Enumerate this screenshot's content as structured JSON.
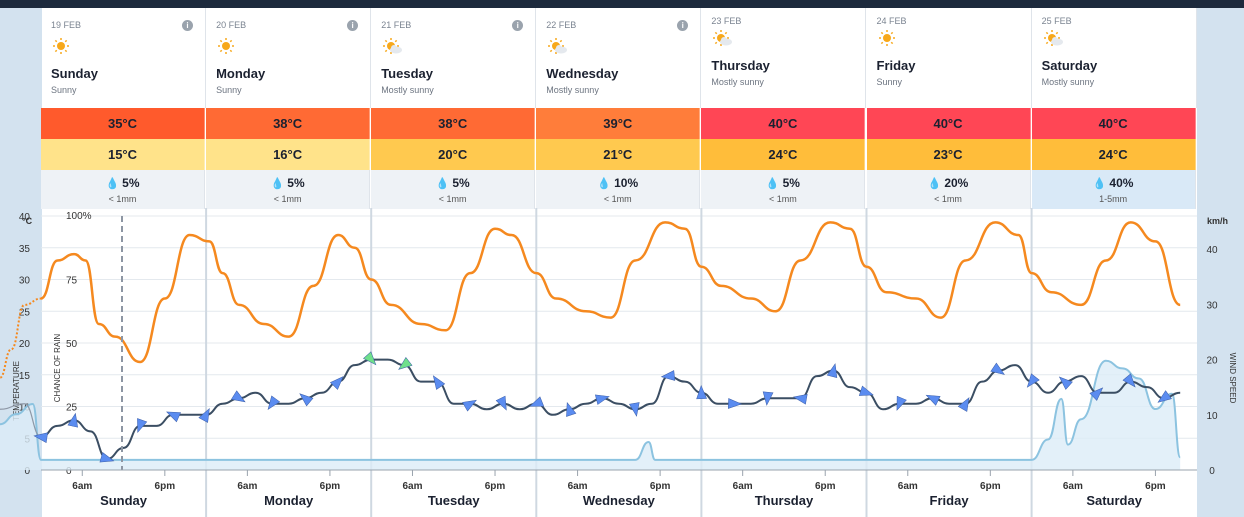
{
  "days": [
    {
      "date": "19 FEB",
      "name": "Sunday",
      "condition": "Sunny",
      "icon": "sun-icon",
      "high": "35°C",
      "low": "15°C",
      "rain_chance": "5%",
      "rain_amount": "< 1mm"
    },
    {
      "date": "20 FEB",
      "name": "Monday",
      "condition": "Sunny",
      "icon": "sun-icon",
      "high": "38°C",
      "low": "16°C",
      "rain_chance": "5%",
      "rain_amount": "< 1mm"
    },
    {
      "date": "21 FEB",
      "name": "Tuesday",
      "condition": "Mostly sunny",
      "icon": "sun-cloud-icon",
      "high": "38°C",
      "low": "20°C",
      "rain_chance": "5%",
      "rain_amount": "< 1mm"
    },
    {
      "date": "22 FEB",
      "name": "Wednesday",
      "condition": "Mostly sunny",
      "icon": "sun-cloud-icon",
      "high": "39°C",
      "low": "21°C",
      "rain_chance": "10%",
      "rain_amount": "< 1mm"
    },
    {
      "date": "23 FEB",
      "name": "Thursday",
      "condition": "Mostly sunny",
      "icon": "sun-cloud-icon",
      "high": "40°C",
      "low": "24°C",
      "rain_chance": "5%",
      "rain_amount": "< 1mm"
    },
    {
      "date": "24 FEB",
      "name": "Friday",
      "condition": "Sunny",
      "icon": "sun-icon",
      "high": "40°C",
      "low": "23°C",
      "rain_chance": "20%",
      "rain_amount": "< 1mm"
    },
    {
      "date": "25 FEB",
      "name": "Saturday",
      "condition": "Mostly sunny",
      "icon": "sun-cloud-icon",
      "high": "40°C",
      "low": "24°C",
      "rain_chance": "40%",
      "rain_amount": "1-5mm"
    }
  ],
  "colors": {
    "high_35": "#ff5a2c",
    "high_38": "#ff6a34",
    "high_39": "#ff7d3a",
    "high_40": "#ff4655",
    "low_15": "#ffe38a",
    "low_16": "#ffe38a",
    "low_20": "#ffc94f",
    "low_21": "#ffc94f",
    "low_24": "#ffbd3a",
    "low_23": "#ffbd3a",
    "temperature": "#f5891f",
    "wind": "#3b4e63",
    "wind_arrow": "#5b8cf0",
    "wind_arrow_strong": "#6fe08b",
    "rain": "#8cc3e0"
  },
  "chart_data": {
    "type": "line",
    "temp_axis": {
      "label": "TEMPERATURE",
      "unit": "°C",
      "ticks": [
        "40",
        "35",
        "30",
        "25",
        "20",
        "15",
        "10",
        "5",
        "0"
      ],
      "range": [
        0,
        40
      ]
    },
    "rain_axis": {
      "label": "CHANCE OF RAIN",
      "ticks": [
        "100%",
        "75",
        "50",
        "25",
        "0"
      ],
      "range": [
        0,
        100
      ]
    },
    "wind_axis": {
      "label": "WIND SPEED",
      "unit": "km/h",
      "ticks": [
        "40",
        "30",
        "20",
        "10",
        "0"
      ],
      "range": [
        0,
        46
      ]
    },
    "x_days": [
      "Sunday",
      "Monday",
      "Tuesday",
      "Wednesday",
      "Thursday",
      "Friday",
      "Saturday"
    ],
    "x_time_labels": [
      "6am",
      "6pm"
    ],
    "now_marker_day": 0,
    "series": [
      {
        "key": "temperature",
        "values_hourly_t": [
          0,
          0.25,
          0.5,
          0.75,
          1
        ],
        "points": [
          [
            -0.45,
            20
          ],
          [
            -0.35,
            18
          ],
          [
            -0.3,
            17
          ],
          [
            -0.25,
            14.5
          ],
          [
            -0.18,
            19
          ],
          [
            -0.1,
            26
          ],
          [
            0,
            27
          ],
          [
            0.1,
            33
          ],
          [
            0.2,
            34
          ],
          [
            0.27,
            33
          ],
          [
            0.35,
            23
          ],
          [
            0.45,
            21
          ],
          [
            0.6,
            17
          ],
          [
            0.75,
            27
          ],
          [
            0.9,
            37
          ],
          [
            1.02,
            36
          ],
          [
            1.1,
            31
          ],
          [
            1.2,
            26
          ],
          [
            1.35,
            23
          ],
          [
            1.5,
            21
          ],
          [
            1.65,
            29
          ],
          [
            1.8,
            37
          ],
          [
            1.9,
            35
          ],
          [
            2.0,
            30
          ],
          [
            2.12,
            26
          ],
          [
            2.3,
            23
          ],
          [
            2.45,
            22
          ],
          [
            2.6,
            31
          ],
          [
            2.75,
            38
          ],
          [
            2.85,
            37
          ],
          [
            3.0,
            31
          ],
          [
            3.12,
            27
          ],
          [
            3.3,
            25
          ],
          [
            3.45,
            24
          ],
          [
            3.6,
            33
          ],
          [
            3.78,
            39
          ],
          [
            3.9,
            38
          ],
          [
            4.0,
            32
          ],
          [
            4.12,
            29
          ],
          [
            4.3,
            27
          ],
          [
            4.45,
            25
          ],
          [
            4.6,
            33
          ],
          [
            4.78,
            39
          ],
          [
            4.9,
            38
          ],
          [
            5.0,
            32
          ],
          [
            5.12,
            28
          ],
          [
            5.3,
            27
          ],
          [
            5.45,
            24
          ],
          [
            5.6,
            33
          ],
          [
            5.78,
            39
          ],
          [
            5.92,
            37
          ],
          [
            6.0,
            31
          ],
          [
            6.12,
            28
          ],
          [
            6.3,
            26
          ],
          [
            6.45,
            33
          ],
          [
            6.6,
            39
          ],
          [
            6.75,
            36
          ],
          [
            6.9,
            26
          ]
        ]
      },
      {
        "key": "wind",
        "points": [
          [
            -0.45,
            8
          ],
          [
            -0.35,
            10
          ],
          [
            -0.25,
            11
          ],
          [
            -0.1,
            12
          ],
          [
            0.0,
            6
          ],
          [
            0.1,
            8
          ],
          [
            0.2,
            9
          ],
          [
            0.3,
            7
          ],
          [
            0.4,
            2
          ],
          [
            0.5,
            4
          ],
          [
            0.6,
            8
          ],
          [
            0.7,
            8
          ],
          [
            0.8,
            10
          ],
          [
            0.9,
            10
          ],
          [
            1.0,
            10
          ],
          [
            1.1,
            12
          ],
          [
            1.2,
            13
          ],
          [
            1.3,
            14
          ],
          [
            1.4,
            12
          ],
          [
            1.5,
            12
          ],
          [
            1.6,
            13
          ],
          [
            1.7,
            14
          ],
          [
            1.8,
            16
          ],
          [
            1.9,
            19
          ],
          [
            2.0,
            20
          ],
          [
            2.1,
            20
          ],
          [
            2.2,
            19
          ],
          [
            2.3,
            16
          ],
          [
            2.4,
            16
          ],
          [
            2.5,
            12
          ],
          [
            2.6,
            12
          ],
          [
            2.7,
            11
          ],
          [
            2.8,
            12
          ],
          [
            2.9,
            11
          ],
          [
            3.0,
            12
          ],
          [
            3.1,
            10
          ],
          [
            3.2,
            11
          ],
          [
            3.3,
            12
          ],
          [
            3.4,
            13
          ],
          [
            3.5,
            12
          ],
          [
            3.6,
            11
          ],
          [
            3.7,
            12
          ],
          [
            3.8,
            17
          ],
          [
            3.9,
            16
          ],
          [
            4.0,
            14
          ],
          [
            4.1,
            12
          ],
          [
            4.2,
            12
          ],
          [
            4.3,
            12
          ],
          [
            4.4,
            13
          ],
          [
            4.5,
            13
          ],
          [
            4.6,
            13
          ],
          [
            4.7,
            17
          ],
          [
            4.8,
            18
          ],
          [
            4.9,
            15
          ],
          [
            5.0,
            14
          ],
          [
            5.1,
            11
          ],
          [
            5.2,
            12
          ],
          [
            5.3,
            12
          ],
          [
            5.4,
            13
          ],
          [
            5.5,
            12
          ],
          [
            5.6,
            12
          ],
          [
            5.7,
            16
          ],
          [
            5.8,
            18
          ],
          [
            5.9,
            19
          ],
          [
            6.0,
            16
          ],
          [
            6.1,
            14
          ],
          [
            6.2,
            16
          ],
          [
            6.3,
            17
          ],
          [
            6.4,
            14
          ],
          [
            6.5,
            14
          ],
          [
            6.6,
            16
          ],
          [
            6.7,
            15
          ],
          [
            6.8,
            13
          ],
          [
            6.9,
            14
          ]
        ]
      },
      {
        "key": "rain_chance",
        "points": [
          [
            -0.45,
            15
          ],
          [
            -0.35,
            20
          ],
          [
            -0.25,
            18
          ],
          [
            -0.15,
            22
          ],
          [
            -0.05,
            26
          ],
          [
            0.0,
            4
          ],
          [
            3.6,
            4
          ],
          [
            3.68,
            11
          ],
          [
            3.72,
            4
          ],
          [
            6.0,
            4
          ],
          [
            6.1,
            12
          ],
          [
            6.18,
            28
          ],
          [
            6.22,
            10
          ],
          [
            6.3,
            20
          ],
          [
            6.45,
            43
          ],
          [
            6.55,
            40
          ],
          [
            6.65,
            36
          ],
          [
            6.75,
            24
          ],
          [
            6.85,
            30
          ],
          [
            6.9,
            5
          ]
        ]
      }
    ]
  }
}
